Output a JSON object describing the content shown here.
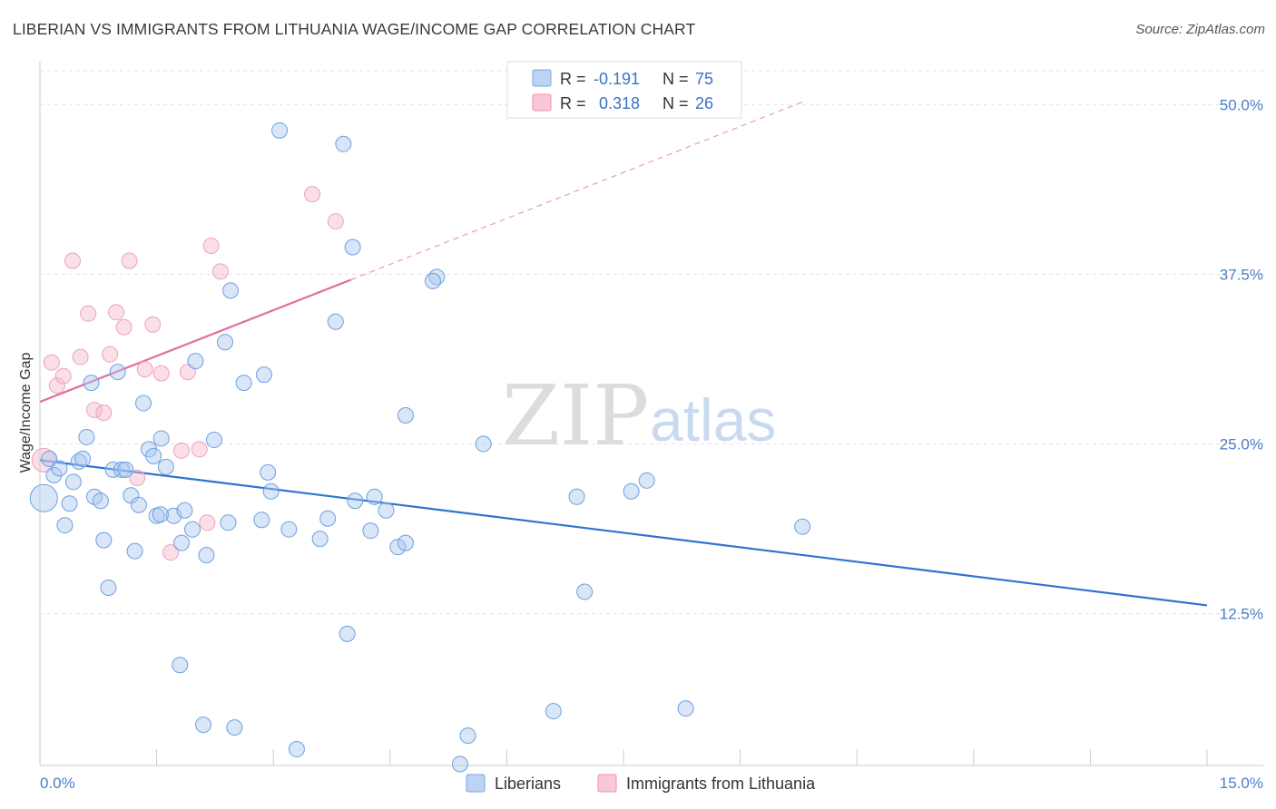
{
  "title": "LIBERIAN VS IMMIGRANTS FROM LITHUANIA WAGE/INCOME GAP CORRELATION CHART",
  "source": "Source: ZipAtlas.com",
  "watermark": {
    "zip": "ZIP",
    "atlas": "atlas"
  },
  "legend": {
    "r_label": "R =",
    "n_label": "N =",
    "series": [
      {
        "r": "-0.191",
        "n": "75"
      },
      {
        "r": "0.318",
        "n": "26"
      }
    ]
  },
  "bottom_legend": [
    "Liberians",
    "Immigrants from Lithuania"
  ],
  "chart_data": {
    "type": "scatter",
    "title": "LIBERIAN VS IMMIGRANTS FROM LITHUANIA WAGE/INCOME GAP CORRELATION CHART",
    "xlabel": "",
    "ylabel": "Wage/Income Gap",
    "xlim": [
      0,
      15
    ],
    "ylim": [
      1.3,
      52.5
    ],
    "x_tick_labels": [
      "0.0%",
      "15.0%"
    ],
    "y_ticks": [
      12.5,
      25.0,
      37.5,
      50.0
    ],
    "y_tick_labels": [
      "12.5%",
      "25.0%",
      "37.5%",
      "50.0%"
    ],
    "grid": true,
    "legend_position": "top-center",
    "colors": {
      "liberians": "#a9c8f0",
      "liberians_line": "#2f73d0",
      "lithuania": "#f5b8cb",
      "lithuania_line": "#e0709a"
    },
    "series": [
      {
        "name": "Liberians",
        "trend": {
          "x": [
            0.0,
            15.0
          ],
          "y": [
            23.8,
            13.1
          ]
        },
        "points": [
          [
            0.05,
            21.0
          ],
          [
            0.12,
            23.9
          ],
          [
            0.18,
            22.7
          ],
          [
            0.25,
            23.2
          ],
          [
            0.32,
            19.0
          ],
          [
            0.38,
            20.6
          ],
          [
            0.43,
            22.2
          ],
          [
            0.5,
            23.7
          ],
          [
            0.55,
            23.9
          ],
          [
            0.6,
            25.5
          ],
          [
            0.66,
            29.5
          ],
          [
            0.7,
            21.1
          ],
          [
            0.78,
            20.8
          ],
          [
            0.82,
            17.9
          ],
          [
            0.88,
            14.4
          ],
          [
            0.94,
            23.1
          ],
          [
            1.0,
            30.3
          ],
          [
            1.05,
            23.1
          ],
          [
            1.1,
            23.1
          ],
          [
            1.17,
            21.2
          ],
          [
            1.22,
            17.1
          ],
          [
            1.27,
            20.5
          ],
          [
            1.33,
            28.0
          ],
          [
            1.4,
            24.6
          ],
          [
            1.46,
            24.1
          ],
          [
            1.5,
            19.7
          ],
          [
            1.56,
            25.4
          ],
          [
            1.62,
            23.3
          ],
          [
            1.72,
            19.7
          ],
          [
            1.82,
            17.7
          ],
          [
            1.86,
            20.1
          ],
          [
            1.96,
            18.7
          ],
          [
            2.0,
            31.1
          ],
          [
            2.14,
            16.8
          ],
          [
            2.24,
            25.3
          ],
          [
            2.38,
            32.5
          ],
          [
            2.42,
            19.2
          ],
          [
            2.45,
            36.3
          ],
          [
            2.62,
            29.5
          ],
          [
            2.85,
            19.4
          ],
          [
            2.88,
            30.1
          ],
          [
            2.93,
            22.9
          ],
          [
            2.97,
            21.5
          ],
          [
            3.2,
            18.7
          ],
          [
            3.6,
            18.0
          ],
          [
            3.7,
            19.5
          ],
          [
            3.8,
            34.0
          ],
          [
            3.95,
            11.0
          ],
          [
            4.02,
            39.5
          ],
          [
            4.05,
            20.8
          ],
          [
            4.25,
            18.6
          ],
          [
            4.3,
            21.1
          ],
          [
            4.45,
            20.1
          ],
          [
            4.6,
            17.4
          ],
          [
            4.7,
            17.7
          ],
          [
            4.7,
            27.1
          ],
          [
            5.1,
            37.3
          ],
          [
            5.05,
            37.0
          ],
          [
            5.7,
            25.0
          ],
          [
            3.08,
            48.1
          ],
          [
            3.9,
            47.1
          ],
          [
            6.9,
            21.1
          ],
          [
            7.0,
            14.1
          ],
          [
            7.6,
            21.5
          ],
          [
            7.8,
            22.3
          ],
          [
            9.8,
            18.9
          ],
          [
            2.1,
            4.3
          ],
          [
            2.5,
            4.1
          ],
          [
            1.8,
            8.7
          ],
          [
            3.3,
            2.5
          ],
          [
            5.5,
            3.5
          ],
          [
            6.6,
            5.3
          ],
          [
            8.3,
            5.5
          ],
          [
            5.4,
            1.4
          ],
          [
            1.55,
            19.8
          ]
        ]
      },
      {
        "name": "Immigrants from Lithuania",
        "trend": {
          "x": [
            0.0,
            4.0
          ],
          "y": [
            28.1,
            37.1
          ]
        },
        "trend_dashed": {
          "x": [
            4.0,
            9.8
          ],
          "y": [
            37.1,
            50.2
          ]
        },
        "points": [
          [
            0.05,
            23.8
          ],
          [
            0.15,
            31.0
          ],
          [
            0.22,
            29.3
          ],
          [
            0.3,
            30.0
          ],
          [
            0.42,
            38.5
          ],
          [
            0.52,
            31.4
          ],
          [
            0.62,
            34.6
          ],
          [
            0.7,
            27.5
          ],
          [
            0.82,
            27.3
          ],
          [
            0.9,
            31.6
          ],
          [
            0.98,
            34.7
          ],
          [
            1.08,
            33.6
          ],
          [
            1.15,
            38.5
          ],
          [
            1.25,
            22.5
          ],
          [
            1.35,
            30.5
          ],
          [
            1.45,
            33.8
          ],
          [
            1.56,
            30.2
          ],
          [
            1.68,
            17.0
          ],
          [
            1.82,
            24.5
          ],
          [
            1.9,
            30.3
          ],
          [
            2.15,
            19.2
          ],
          [
            2.2,
            39.6
          ],
          [
            2.32,
            37.7
          ],
          [
            3.5,
            43.4
          ],
          [
            3.8,
            41.4
          ],
          [
            2.05,
            24.6
          ]
        ]
      }
    ]
  }
}
